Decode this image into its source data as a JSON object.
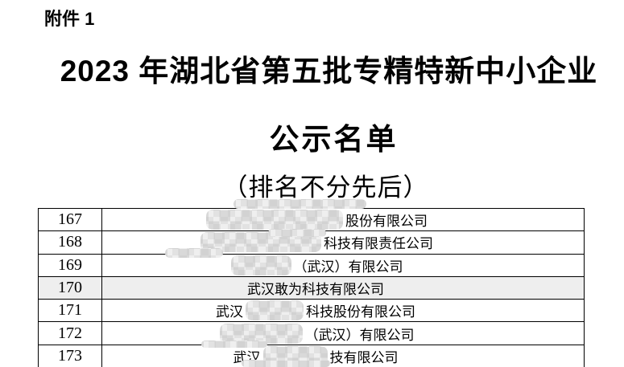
{
  "page": {
    "attachment_label": "附件 1",
    "title_line1": "2023 年湖北省第五批专精特新中小企业",
    "title_line2": "公示名单",
    "subtitle": "（排名不分先后）"
  },
  "table": {
    "highlight_color": "#eeeeee",
    "rows": [
      {
        "num": "167",
        "prefix": "",
        "redacted": true,
        "blur_width": 170,
        "suffix": "股份有限公司",
        "highlighted": false
      },
      {
        "num": "168",
        "prefix": "",
        "redacted": true,
        "blur_width": 150,
        "suffix": "科技有限责任公司",
        "highlighted": false
      },
      {
        "num": "169",
        "prefix": "",
        "redacted": true,
        "blur_width": 75,
        "suffix": "（武汉）有限公司",
        "highlighted": false
      },
      {
        "num": "170",
        "prefix": "",
        "redacted": false,
        "blur_width": 0,
        "suffix": "武汉敢为科技有限公司",
        "highlighted": true
      },
      {
        "num": "171",
        "prefix": "武汉",
        "redacted": true,
        "blur_width": 72,
        "suffix": "科技股份有限公司",
        "highlighted": false
      },
      {
        "num": "172",
        "prefix": "",
        "redacted": true,
        "blur_width": 103,
        "suffix": "（武汉）有限公司",
        "highlighted": false
      },
      {
        "num": "173",
        "prefix": "武汉",
        "redacted": true,
        "blur_width": 80,
        "suffix": "技有限公司",
        "highlighted": false
      }
    ]
  }
}
